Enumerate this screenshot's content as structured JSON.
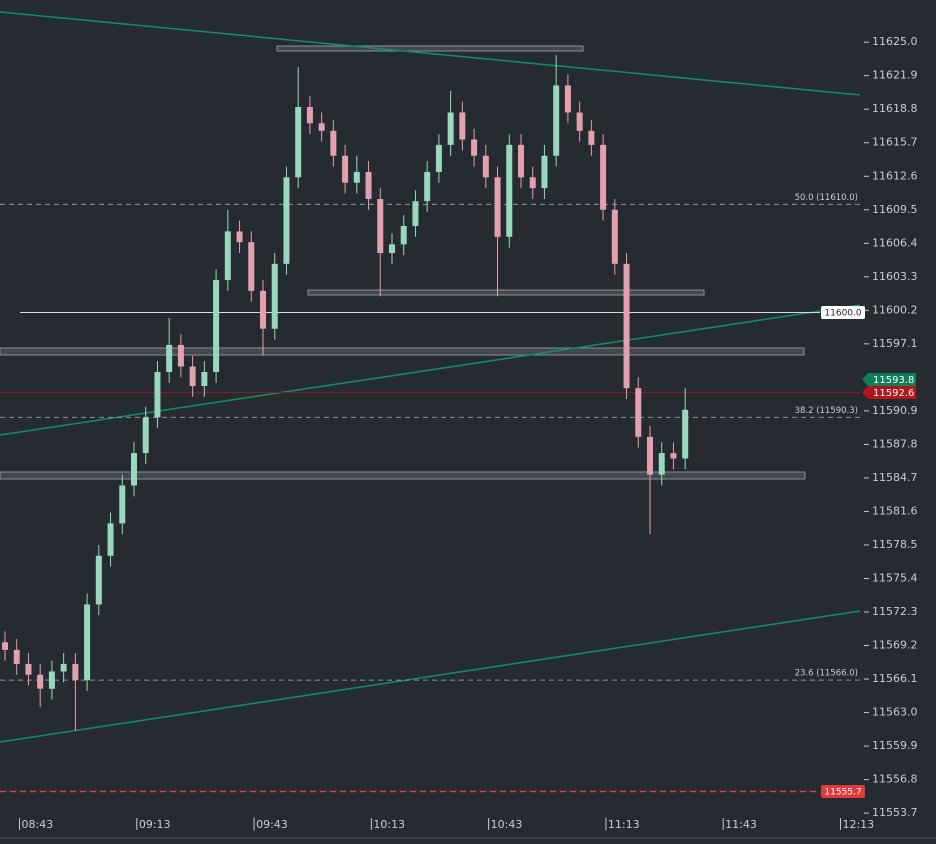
{
  "chart_data": {
    "type": "candlestick",
    "x": [
      "08:38",
      "08:41",
      "08:44",
      "08:47",
      "08:50",
      "08:53",
      "08:56",
      "08:59",
      "09:02",
      "09:05",
      "09:08",
      "09:11",
      "09:14",
      "09:17",
      "09:20",
      "09:23",
      "09:26",
      "09:29",
      "09:32",
      "09:35",
      "09:38",
      "09:41",
      "09:44",
      "09:47",
      "09:50",
      "09:53",
      "09:56",
      "09:59",
      "10:02",
      "10:05",
      "10:08",
      "10:11",
      "10:14",
      "10:17",
      "10:20",
      "10:23",
      "10:26",
      "10:29",
      "10:32",
      "10:35",
      "10:38",
      "10:41",
      "10:44",
      "10:47",
      "10:50",
      "10:53",
      "10:56",
      "10:59",
      "11:02",
      "11:05",
      "11:08",
      "11:11",
      "11:14",
      "11:17",
      "11:20",
      "11:23",
      "11:26",
      "11:29",
      "11:32"
    ],
    "open": [
      11569.5,
      11568.8,
      11567.5,
      11566.5,
      11565.2,
      11566.8,
      11567.5,
      11566.0,
      11573.0,
      11577.5,
      11580.5,
      11584.0,
      11587.0,
      11590.3,
      11594.5,
      11597.0,
      11595.0,
      11593.2,
      11594.5,
      11603.0,
      11607.5,
      11606.5,
      11602.0,
      11598.5,
      11604.5,
      11612.5,
      11619.0,
      11617.5,
      11616.8,
      11614.5,
      11612.0,
      11613.0,
      11610.5,
      11605.5,
      11606.3,
      11608.0,
      11610.3,
      11613.0,
      11615.5,
      11618.5,
      11616.0,
      11614.5,
      11612.5,
      11607.0,
      11615.5,
      11612.5,
      11611.5,
      11614.5,
      11621.0,
      11618.5,
      11616.8,
      11615.5,
      11609.5,
      11604.5,
      11593.0,
      11588.5,
      11585.0,
      11587.0,
      11586.5
    ],
    "high": [
      11570.5,
      11569.8,
      11568.5,
      11567.5,
      11567.8,
      11568.5,
      11568.5,
      11574.0,
      11578.5,
      11581.5,
      11585.0,
      11588.0,
      11591.3,
      11595.5,
      11599.5,
      11598.0,
      11596.0,
      11595.5,
      11604.0,
      11609.5,
      11608.5,
      11607.5,
      11603.0,
      11605.5,
      11613.5,
      11622.7,
      11620.0,
      11618.5,
      11617.8,
      11615.5,
      11614.5,
      11614.0,
      11611.5,
      11607.3,
      11609.0,
      11611.3,
      11614.0,
      11616.5,
      11620.5,
      11619.5,
      11617.0,
      11615.5,
      11613.5,
      11616.5,
      11616.5,
      11613.5,
      11615.5,
      11623.8,
      11622.0,
      11619.5,
      11617.8,
      11616.5,
      11610.5,
      11605.5,
      11594.0,
      11589.5,
      11588.0,
      11588.0,
      11593.0
    ],
    "low": [
      11567.8,
      11566.5,
      11565.5,
      11563.5,
      11564.2,
      11565.8,
      11561.3,
      11565.0,
      11572.0,
      11576.5,
      11579.5,
      11583.0,
      11586.0,
      11589.3,
      11593.5,
      11594.0,
      11592.2,
      11592.2,
      11593.5,
      11602.0,
      11605.5,
      11601.0,
      11596.0,
      11597.5,
      11603.5,
      11611.5,
      11616.5,
      11615.8,
      11613.5,
      11611.0,
      11611.0,
      11609.5,
      11601.5,
      11604.5,
      11605.3,
      11607.0,
      11609.3,
      11612.0,
      11614.5,
      11615.0,
      11613.5,
      11611.5,
      11601.5,
      11606.0,
      11611.5,
      11610.5,
      11610.5,
      11613.5,
      11617.5,
      11615.8,
      11614.5,
      11608.5,
      11603.5,
      11592.0,
      11587.5,
      11579.5,
      11584.0,
      11585.5,
      11585.5
    ],
    "close": [
      11568.8,
      11567.5,
      11566.5,
      11565.2,
      11566.8,
      11567.5,
      11566.0,
      11573.0,
      11577.5,
      11580.5,
      11584.0,
      11587.0,
      11590.3,
      11594.5,
      11597.0,
      11595.0,
      11593.2,
      11594.5,
      11603.0,
      11607.5,
      11606.5,
      11602.0,
      11598.5,
      11604.5,
      11612.5,
      11619.0,
      11617.5,
      11616.8,
      11614.5,
      11612.0,
      11613.0,
      11610.5,
      11605.5,
      11606.3,
      11608.0,
      11610.3,
      11613.0,
      11615.5,
      11618.5,
      11616.0,
      11614.5,
      11612.5,
      11607.0,
      11615.5,
      11612.5,
      11611.5,
      11614.5,
      11621.0,
      11618.5,
      11616.8,
      11615.5,
      11609.5,
      11604.5,
      11593.0,
      11588.5,
      11585.0,
      11587.0,
      11586.5,
      11591.0
    ],
    "up_color": "#9ad7bf",
    "down_color": "#e3a1af",
    "xlim": [
      "08:38",
      "12:18"
    ],
    "xticks": [
      "08:43",
      "09:13",
      "09:43",
      "10:13",
      "10:43",
      "11:13",
      "11:43",
      "12:13"
    ],
    "ylim": [
      11551.4,
      11628.9
    ],
    "yticks": [
      {
        "value": 11625.0,
        "label": "11625.0"
      },
      11621.9,
      11618.8,
      11615.7,
      11612.6,
      11609.5,
      11606.4,
      11603.3,
      11600.2,
      11597.1,
      11590.9,
      11587.8,
      11584.7,
      11581.6,
      11578.5,
      11575.4,
      11572.3,
      11569.2,
      11566.1,
      {
        "value": 11563.0,
        "label": "11563.0"
      },
      11559.9,
      11556.8,
      11553.7
    ],
    "levels": [
      {
        "value": 11610.0,
        "label": "50.0 (11610.0)",
        "style": "dashed",
        "color": "#8c939a"
      },
      {
        "value": 11600.0,
        "label": "11600.0",
        "style": "solid",
        "color": "#d8dadc",
        "badge": "inline",
        "badge_color": "#ffffff",
        "text_color": "#1e2328"
      },
      {
        "value": 11593.8,
        "style": "none",
        "color": "#0f7d57",
        "badge": "axis",
        "badge_color": "#0f7d57",
        "text_color": "#ffffff"
      },
      {
        "value": 11592.6,
        "style": "solid",
        "color": "#8e1a1a",
        "badge": "axis",
        "badge_color": "#b3151a",
        "text_color": "#ffffff"
      },
      {
        "value": 11590.3,
        "label": "38.2 (11590.3)",
        "style": "dashed",
        "color": "#8c939a"
      },
      {
        "value": 11566.0,
        "label": "23.6 (11566.0)",
        "style": "dashed",
        "color": "#8c939a"
      },
      {
        "value": 11555.7,
        "label": "11555.7",
        "style": "dashed",
        "color": "#e03a3a",
        "badge": "inline",
        "badge_color": "#e03a3a",
        "text_color": "#ffffff"
      }
    ]
  }
}
